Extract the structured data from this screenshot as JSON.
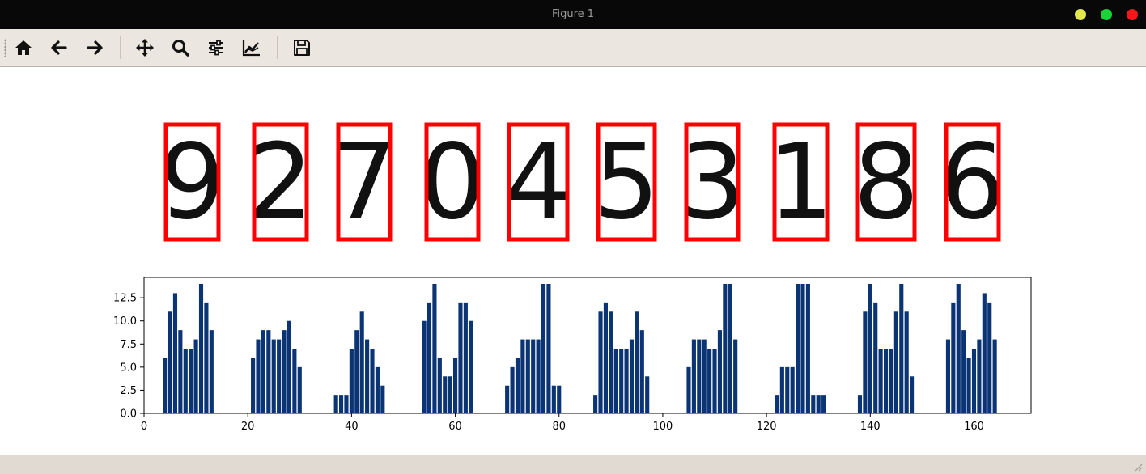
{
  "window": {
    "title": "Figure 1"
  },
  "toolbar": {
    "buttons": [
      {
        "name": "home-button",
        "icon": "home-icon"
      },
      {
        "name": "back-button",
        "icon": "arrow-left-icon"
      },
      {
        "name": "forward-button",
        "icon": "arrow-right-icon"
      },
      {
        "name": "pan-button",
        "icon": "move-icon"
      },
      {
        "name": "zoom-button",
        "icon": "magnifier-icon"
      },
      {
        "name": "configure-subplots-button",
        "icon": "sliders-icon"
      },
      {
        "name": "edit-axes-button",
        "icon": "line-chart-icon"
      },
      {
        "name": "save-button",
        "icon": "floppy-disk-icon"
      }
    ]
  },
  "colors": {
    "bar": "#0b3474",
    "box": "#ff0000",
    "titlebar": "#080808",
    "toolbar": "#ebe6df"
  },
  "digits": [
    "9",
    "2",
    "7",
    "0",
    "4",
    "5",
    "3",
    "1",
    "8",
    "6"
  ],
  "chart_data": {
    "type": "bar",
    "x_start": 4,
    "values": [
      6,
      11,
      13,
      9,
      7,
      7,
      8,
      14,
      12,
      9,
      0,
      0,
      0,
      0,
      0,
      0,
      0,
      6,
      8,
      9,
      9,
      8,
      8,
      9,
      10,
      7,
      5,
      0,
      0,
      0,
      0,
      0,
      0,
      2,
      2,
      2,
      7,
      9,
      11,
      8,
      7,
      5,
      3,
      0,
      0,
      0,
      0,
      0,
      0,
      0,
      10,
      12,
      14,
      6,
      4,
      4,
      6,
      12,
      12,
      10,
      0,
      0,
      0,
      0,
      0,
      0,
      3,
      5,
      6,
      8,
      8,
      8,
      8,
      14,
      14,
      3,
      3,
      0,
      0,
      0,
      0,
      0,
      0,
      2,
      11,
      12,
      11,
      7,
      7,
      7,
      8,
      11,
      9,
      4,
      0,
      0,
      0,
      0,
      0,
      0,
      0,
      5,
      8,
      8,
      8,
      7,
      7,
      9,
      14,
      14,
      8,
      0,
      0,
      0,
      0,
      0,
      0,
      0,
      2,
      5,
      5,
      5,
      14,
      14,
      14,
      2,
      2,
      2,
      0,
      0,
      0,
      0,
      0,
      0,
      2,
      11,
      14,
      12,
      7,
      7,
      7,
      11,
      14,
      11,
      4,
      0,
      0,
      0,
      0,
      0,
      0,
      8,
      12,
      14,
      9,
      6,
      7,
      8,
      13,
      12,
      8
    ],
    "xlim": [
      0,
      171
    ],
    "ylim": [
      0,
      14.7
    ],
    "xticks": [
      0,
      20,
      40,
      60,
      80,
      100,
      120,
      140,
      160
    ],
    "yticks": [
      "0.0",
      "2.5",
      "5.0",
      "7.5",
      "10.0",
      "12.5"
    ],
    "xlabel": "",
    "ylabel": "",
    "title": ""
  }
}
